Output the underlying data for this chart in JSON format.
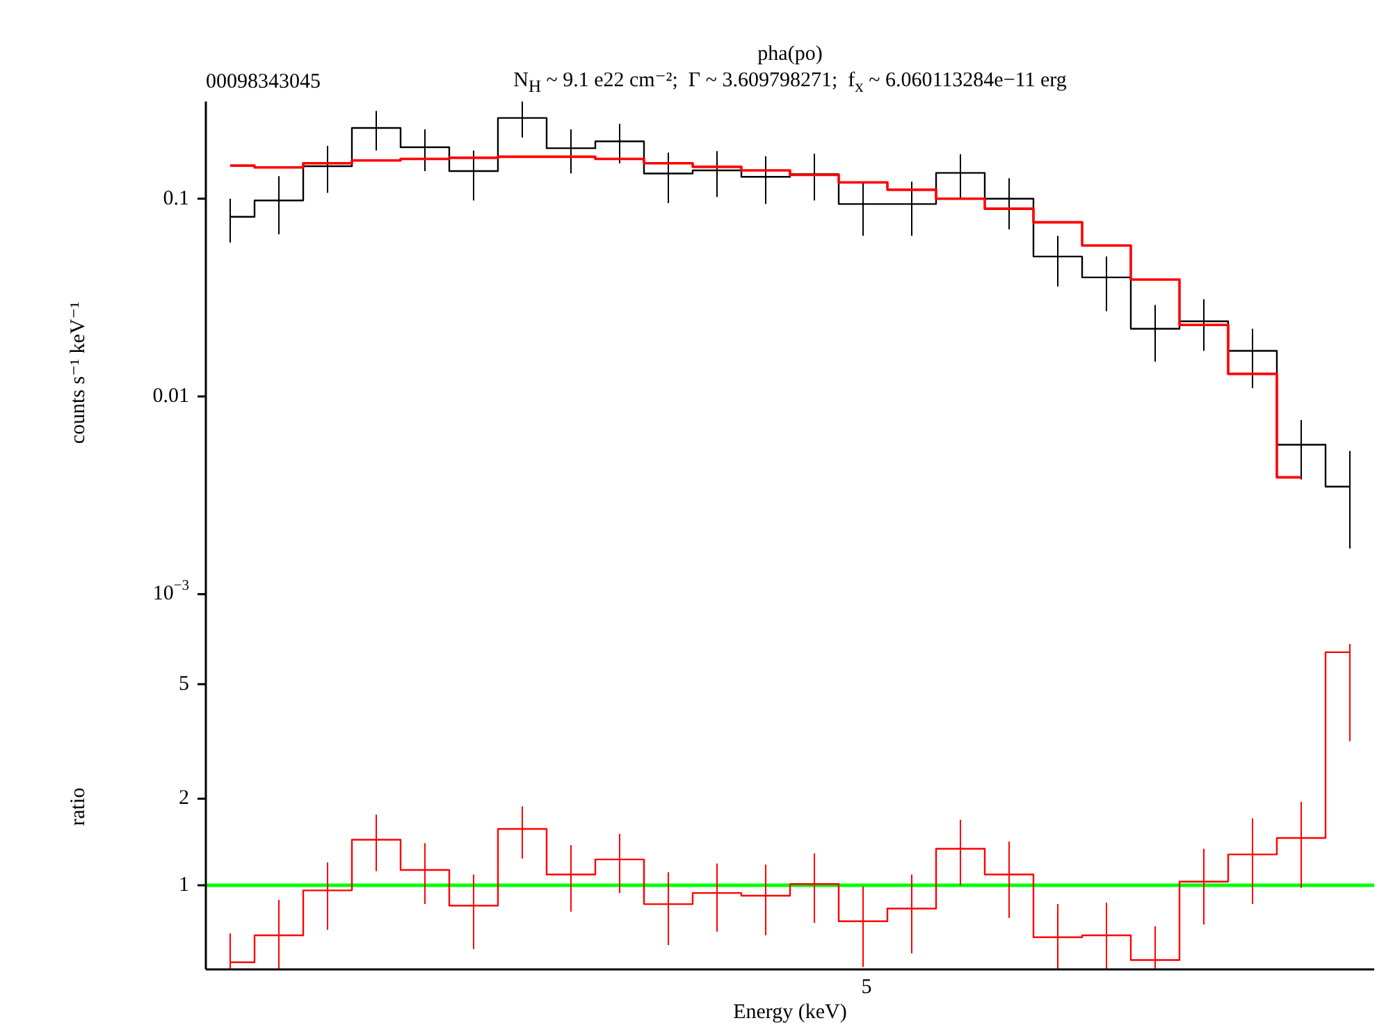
{
  "chart_data": [
    {
      "type": "step",
      "title": "pha(po)",
      "subtitle": "N$_{H}$ ~ 9.1 e22 cm⁻²;  Γ ~ 3.609798271;  f$_{x}$ ~ 6.060113284e−11 erg",
      "annotations": [
        "00098343045"
      ],
      "ylabel": "counts s⁻¹ keV⁻¹",
      "log": "y",
      "categories": [
        null,
        null,
        null,
        null,
        null,
        null,
        null,
        null,
        null,
        null,
        null,
        null,
        null,
        null,
        null,
        null,
        null,
        null,
        null,
        null,
        null,
        null,
        null,
        null
      ],
      "ylim": [
        0.00056,
        0.31
      ],
      "yticks": [
        {
          "value": 0.001,
          "label": "10$^{−3}$"
        },
        0.01,
        0.1
      ],
      "series": [
        {
          "color": "#000000",
          "values": [
            0.081,
            0.098,
            0.146,
            0.228,
            0.182,
            0.138,
            0.256,
            0.18,
            0.195,
            0.134,
            0.139,
            0.129,
            0.133,
            0.094,
            0.094,
            0.135,
            0.1,
            0.051,
            0.04,
            0.022,
            0.024,
            0.017,
            0.0057,
            0.0035
          ],
          "errors": [
            [
              0.06,
              0.1
            ],
            [
              0.066,
              0.13
            ],
            [
              0.107,
              0.185
            ],
            [
              0.175,
              0.278
            ],
            [
              0.138,
              0.224
            ],
            [
              0.098,
              0.175
            ],
            [
              0.204,
              0.31
            ],
            [
              0.134,
              0.224
            ],
            [
              0.151,
              0.239
            ],
            [
              0.095,
              0.171
            ],
            [
              0.102,
              0.174
            ],
            [
              0.094,
              0.164
            ],
            [
              0.098,
              0.169
            ],
            [
              0.065,
              0.121
            ],
            [
              0.065,
              0.122
            ],
            [
              0.101,
              0.168
            ],
            [
              0.07,
              0.127
            ],
            [
              0.036,
              0.065
            ],
            [
              0.027,
              0.051
            ],
            [
              0.015,
              0.029
            ],
            [
              0.017,
              0.031
            ],
            [
              0.011,
              0.022
            ],
            [
              0.0038,
              0.0076
            ],
            [
              0.0017,
              0.0053
            ]
          ]
        },
        {
          "color": "#ff0000",
          "values": [
            0.147,
            0.144,
            0.151,
            0.156,
            0.159,
            0.161,
            0.163,
            0.163,
            0.159,
            0.151,
            0.145,
            0.139,
            0.132,
            0.121,
            0.111,
            0.1,
            0.089,
            0.076,
            0.058,
            0.039,
            0.023,
            0.013,
            0.0039,
            null
          ]
        }
      ]
    },
    {
      "type": "step",
      "xlabel": "Energy (keV)",
      "ylabel": "ratio",
      "log": "y",
      "annotations": [
        "5"
      ],
      "categories": [
        null,
        null,
        null,
        null,
        null,
        null,
        null,
        null,
        null,
        null,
        null,
        null,
        null,
        null,
        null,
        null,
        null,
        null,
        null,
        null,
        null,
        null,
        null,
        null
      ],
      "ylim": [
        0.51,
        6.9
      ],
      "yticks": [
        1,
        2,
        5
      ],
      "ref_lines": [
        {
          "axis": "y",
          "value": 1,
          "color": "#00ff00"
        }
      ],
      "series": [
        {
          "color": "#ff0000",
          "values": [
            0.54,
            0.67,
            0.96,
            1.44,
            1.13,
            0.85,
            1.57,
            1.09,
            1.23,
            0.86,
            0.94,
            0.92,
            1.01,
            0.75,
            0.83,
            1.34,
            1.09,
            0.66,
            0.67,
            0.55,
            1.03,
            1.28,
            1.46,
            6.46
          ],
          "errors": [
            [
              0.51,
              0.68
            ],
            [
              0.51,
              0.89
            ],
            [
              0.7,
              1.2
            ],
            [
              1.12,
              1.76
            ],
            [
              0.86,
              1.4
            ],
            [
              0.6,
              1.09
            ],
            [
              1.24,
              1.88
            ],
            [
              0.81,
              1.38
            ],
            [
              0.94,
              1.51
            ],
            [
              0.62,
              1.11
            ],
            [
              0.69,
              1.19
            ],
            [
              0.67,
              1.18
            ],
            [
              0.74,
              1.29
            ],
            [
              0.52,
              0.99
            ],
            [
              0.58,
              1.09
            ],
            [
              1.0,
              1.69
            ],
            [
              0.77,
              1.42
            ],
            [
              0.51,
              0.86
            ],
            [
              0.51,
              0.87
            ],
            [
              0.51,
              0.72
            ],
            [
              0.73,
              1.34
            ],
            [
              0.86,
              1.71
            ],
            [
              0.98,
              1.95
            ],
            [
              3.17,
              6.9
            ]
          ]
        }
      ]
    }
  ]
}
